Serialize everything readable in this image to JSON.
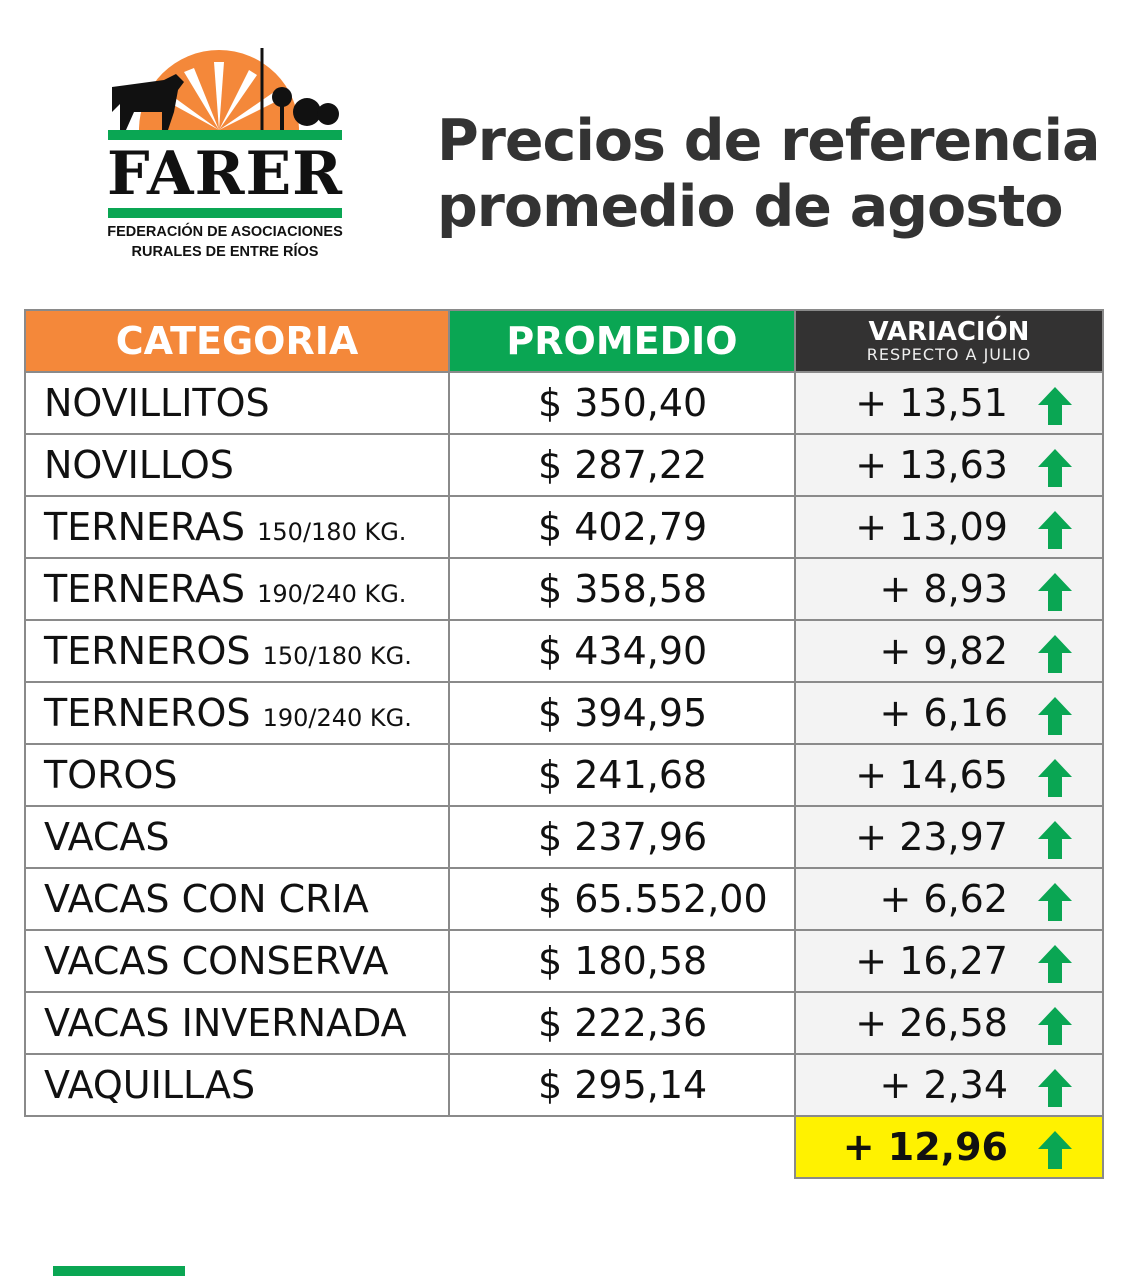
{
  "logo": {
    "name": "FARER",
    "subtitle_line1": "FEDERACIÓN DE ASOCIACIONES",
    "subtitle_line2": "RURALES DE ENTRE RÍOS"
  },
  "title": {
    "line1": "Precios de referencia",
    "line2": "promedio de agosto"
  },
  "table": {
    "headers": {
      "category": "CATEGORIA",
      "average": "PROMEDIO",
      "variation": "VARIACIÓN",
      "variation_sub": "RESPECTO A  JULIO"
    },
    "rows": [
      {
        "category": "NOVILLITOS",
        "weight": "",
        "average": "$ 350,40",
        "variation": "+ 13,51"
      },
      {
        "category": "NOVILLOS",
        "weight": "",
        "average": "$ 287,22",
        "variation": "+ 13,63"
      },
      {
        "category": "TERNERAS",
        "weight": "150/180 KG.",
        "average": "$ 402,79",
        "variation": "+ 13,09"
      },
      {
        "category": "TERNERAS",
        "weight": "190/240 KG.",
        "average": "$ 358,58",
        "variation": "+ 8,93"
      },
      {
        "category": "TERNEROS",
        "weight": "150/180 KG.",
        "average": "$ 434,90",
        "variation": "+ 9,82"
      },
      {
        "category": "TERNEROS",
        "weight": "190/240 KG.",
        "average": "$ 394,95",
        "variation": "+ 6,16"
      },
      {
        "category": "TOROS",
        "weight": "",
        "average": "$ 241,68",
        "variation": "+ 14,65"
      },
      {
        "category": "VACAS",
        "weight": "",
        "average": "$ 237,96",
        "variation": "+ 23,97"
      },
      {
        "category": "VACAS CON CRIA",
        "weight": "",
        "average": "$ 65.552,00",
        "variation": "+ 6,62"
      },
      {
        "category": "VACAS CONSERVA",
        "weight": "",
        "average": "$ 180,58",
        "variation": "+ 16,27"
      },
      {
        "category": "VACAS INVERNADA",
        "weight": "",
        "average": "$ 222,36",
        "variation": "+ 26,58"
      },
      {
        "category": "VAQUILLAS",
        "weight": "",
        "average": "$ 295,14",
        "variation": "+ 2,34"
      }
    ],
    "total_variation": "+ 12,96",
    "trend_icon": "arrow-up-icon"
  },
  "colors": {
    "orange": "#f4883a",
    "green": "#0aa653",
    "dark": "#333232",
    "highlight": "#fff200"
  }
}
